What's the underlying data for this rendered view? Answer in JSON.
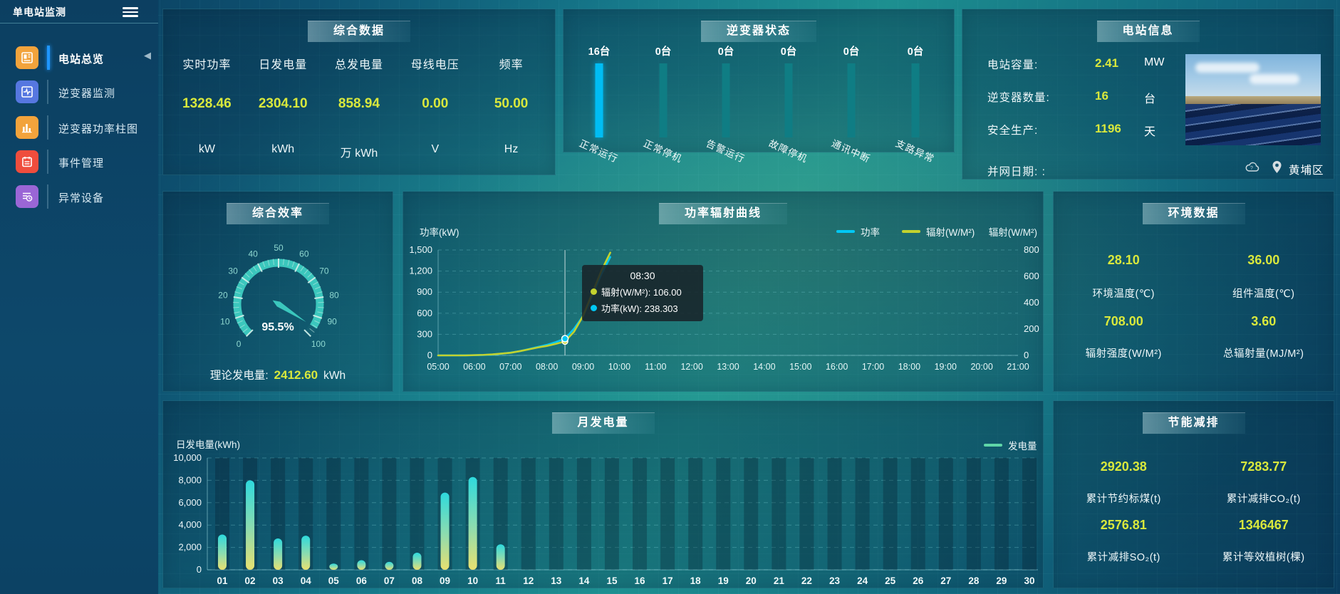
{
  "app": {
    "title": "单电站监测"
  },
  "colors": {
    "accent_yellow": "#d9e83c",
    "accent_cyan": "#00bdf4",
    "teal_bar": "#0f7d84",
    "gauge": "#3bc7bd",
    "power_line": "#00c8f5",
    "radiation_line": "#c3d22e",
    "bar_top": "#2ed9dd",
    "bar_bottom": "#e8e070",
    "active_blue": "#1f97ff"
  },
  "sidebar": {
    "items": [
      {
        "label": "电站总览",
        "active": true,
        "icon": "station-overview-icon",
        "tile_color": "#f2a33c"
      },
      {
        "label": "逆变器监测",
        "active": false,
        "icon": "inverter-monitor-icon",
        "tile_color": "#5677e0"
      },
      {
        "label": "逆变器功率柱图",
        "active": false,
        "icon": "inverter-power-bars-icon",
        "tile_color": "#f2a33c"
      },
      {
        "label": "事件管理",
        "active": false,
        "icon": "event-management-icon",
        "tile_color": "#ef4d3d"
      },
      {
        "label": "异常设备",
        "active": false,
        "icon": "abnormal-device-icon",
        "tile_color": "#9a66d6"
      }
    ]
  },
  "overview": {
    "title": "综合数据",
    "metrics": [
      {
        "label": "实时功率",
        "value": "1328.46",
        "unit": "kW"
      },
      {
        "label": "日发电量",
        "value": "2304.10",
        "unit": "kWh"
      },
      {
        "label": "总发电量",
        "value": "858.94",
        "unit": "万 kWh"
      },
      {
        "label": "母线电压",
        "value": "0.00",
        "unit": "V"
      },
      {
        "label": "频率",
        "value": "50.00",
        "unit": "Hz"
      }
    ]
  },
  "inverter_status": {
    "title": "逆变器状态"
  },
  "station_info": {
    "title": "电站信息",
    "rows": [
      {
        "label": "电站容量:",
        "value": "2.41",
        "unit": "MW"
      },
      {
        "label": "逆变器数量:",
        "value": "16",
        "unit": "台"
      },
      {
        "label": "安全生产:",
        "value": "1196",
        "unit": "天"
      },
      {
        "label": "并网日期: :",
        "value": "",
        "unit": ""
      }
    ],
    "location": "黄埔区"
  },
  "efficiency": {
    "title": "综合效率",
    "footer_label": "理论发电量:",
    "footer_value": "2412.60",
    "footer_unit": "kWh"
  },
  "power_curve": {
    "title": "功率辐射曲线"
  },
  "environment": {
    "title": "环境数据",
    "items": [
      {
        "value": "28.10",
        "label": "环境温度(℃)"
      },
      {
        "value": "36.00",
        "label": "组件温度(℃)"
      },
      {
        "value": "708.00",
        "label": "辐射强度(W/M²)"
      },
      {
        "value": "3.60",
        "label": "总辐射量(MJ/M²)"
      }
    ]
  },
  "monthly": {
    "title": "月发电量"
  },
  "savings": {
    "title": "节能减排",
    "items": [
      {
        "value": "2920.38",
        "label": "累计节约标煤(t)"
      },
      {
        "value": "7283.77",
        "label": "累计减排CO₂(t)"
      },
      {
        "value": "2576.81",
        "label": "累计减排SO₂(t)"
      },
      {
        "value": "1346467",
        "label": "累计等效植树(棵)"
      }
    ]
  },
  "chart_data": [
    {
      "id": "inverter_status",
      "type": "bar",
      "title": "逆变器状态",
      "unit": "台",
      "categories": [
        "正常运行",
        "正常停机",
        "告警运行",
        "故障停机",
        "通讯中断",
        "支路异常"
      ],
      "values": [
        16,
        0,
        0,
        0,
        0,
        0
      ],
      "count_labels": [
        "16台",
        "0台",
        "0台",
        "0台",
        "0台",
        "0台"
      ],
      "highlight_color": "#00bdf4",
      "inactive_color": "#0f7d84"
    },
    {
      "id": "efficiency_gauge",
      "type": "gauge",
      "title": "综合效率",
      "value": 95.5,
      "display": "95.5%",
      "min": 0,
      "max": 100,
      "tick_step": 10
    },
    {
      "id": "power_radiation",
      "type": "line",
      "title": "功率辐射曲线",
      "x": [
        "05:00",
        "05:15",
        "05:30",
        "05:45",
        "06:00",
        "06:15",
        "06:30",
        "06:45",
        "07:00",
        "07:15",
        "07:30",
        "07:45",
        "08:00",
        "08:15",
        "08:30",
        "08:45",
        "09:00",
        "09:15",
        "09:30",
        "09:45"
      ],
      "series": [
        {
          "name": "功率",
          "axis": "left",
          "color": "#00c8f5",
          "values": [
            0,
            0,
            0,
            1,
            3,
            6,
            12,
            25,
            40,
            60,
            90,
            120,
            150,
            190,
            238.3,
            380,
            560,
            850,
            1150,
            1400
          ]
        },
        {
          "name": "辐射(W/M²)",
          "axis": "right",
          "color": "#c3d22e",
          "values": [
            0,
            0,
            0,
            0,
            2,
            4,
            8,
            14,
            20,
            32,
            46,
            60,
            72,
            88,
            106,
            180,
            300,
            470,
            640,
            780
          ]
        }
      ],
      "left_axis": {
        "title": "功率(kW)",
        "ticks": [
          "1,500",
          "1,200",
          "900",
          "600",
          "300",
          "0"
        ],
        "max": 1500
      },
      "right_axis": {
        "title": "辐射(W/M²)",
        "ticks": [
          "800",
          "600",
          "400",
          "200",
          "0"
        ],
        "max": 800
      },
      "x_labels": [
        "05:00",
        "06:00",
        "07:00",
        "08:00",
        "09:00",
        "10:00",
        "11:00",
        "12:00",
        "13:00",
        "14:00",
        "15:00",
        "16:00",
        "17:00",
        "18:00",
        "19:00",
        "20:00",
        "21:00"
      ],
      "x_range": [
        5,
        21
      ],
      "tooltip": {
        "title": "08:30",
        "time_value": 8.5,
        "rows": [
          {
            "text": "辐射(W/M²): 106.00",
            "color": "#c3d22e",
            "value": 106.0
          },
          {
            "text": "功率(kW): 238.303",
            "color": "#00c8f5",
            "value": 238.303
          }
        ]
      },
      "legend_position": "top-right",
      "grid": true
    },
    {
      "id": "monthly_generation",
      "type": "bar",
      "title": "月发电量",
      "axis_title": "日发电量(kWh)",
      "legend": "发电量",
      "categories": [
        "01",
        "02",
        "03",
        "04",
        "05",
        "06",
        "07",
        "08",
        "09",
        "10",
        "11",
        "12",
        "13",
        "14",
        "15",
        "16",
        "17",
        "18",
        "19",
        "20",
        "21",
        "22",
        "23",
        "24",
        "25",
        "26",
        "27",
        "28",
        "29",
        "30"
      ],
      "values": [
        3150,
        8000,
        2800,
        3050,
        560,
        860,
        710,
        1530,
        6900,
        8300,
        2280,
        0,
        0,
        0,
        0,
        0,
        0,
        0,
        0,
        0,
        0,
        0,
        0,
        0,
        0,
        0,
        0,
        0,
        0,
        0
      ],
      "y_ticks": [
        "10,000",
        "8,000",
        "6,000",
        "4,000",
        "2,000",
        "0"
      ],
      "ymax": 10000,
      "grid": true,
      "legend_position": "top-right"
    }
  ]
}
